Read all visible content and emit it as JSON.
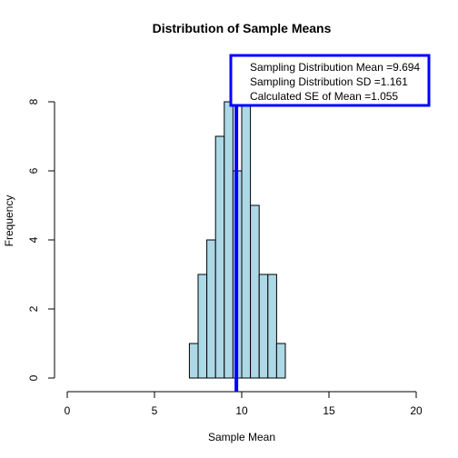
{
  "chart_data": {
    "type": "bar",
    "title": "Distribution of Sample Means",
    "xlabel": "Sample Mean",
    "ylabel": "Frequency",
    "xlim": [
      0,
      20
    ],
    "ylim": [
      0,
      8
    ],
    "x_ticks": [
      0,
      5,
      10,
      15,
      20
    ],
    "y_ticks": [
      0,
      2,
      4,
      6,
      8
    ],
    "bin_width": 0.5,
    "bins": [
      {
        "start": 7.0,
        "end": 7.5,
        "count": 1
      },
      {
        "start": 7.5,
        "end": 8.0,
        "count": 3
      },
      {
        "start": 8.0,
        "end": 8.5,
        "count": 4
      },
      {
        "start": 8.5,
        "end": 9.0,
        "count": 7
      },
      {
        "start": 9.0,
        "end": 9.5,
        "count": 8
      },
      {
        "start": 9.5,
        "end": 10.0,
        "count": 6
      },
      {
        "start": 10.0,
        "end": 10.5,
        "count": 8
      },
      {
        "start": 10.5,
        "end": 11.0,
        "count": 5
      },
      {
        "start": 11.0,
        "end": 11.5,
        "count": 3
      },
      {
        "start": 11.5,
        "end": 12.0,
        "count": 3
      },
      {
        "start": 12.0,
        "end": 12.5,
        "count": 1
      }
    ],
    "bar_fill": "#add8e6",
    "bar_stroke": "#000000",
    "mean_line": {
      "x": 9.694,
      "color": "#0000ff"
    },
    "legend": {
      "position": "top-right",
      "border_color": "#0000ff",
      "lines": [
        "Sampling Distribution Mean =9.694",
        "Sampling Distribution SD =1.161",
        "Calculated SE of Mean =1.055"
      ]
    },
    "grid": false
  }
}
